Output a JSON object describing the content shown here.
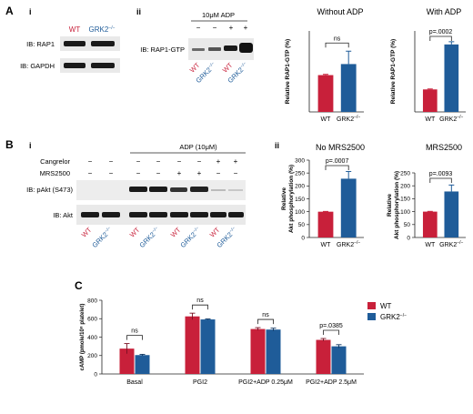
{
  "colors": {
    "wt": "#c8203a",
    "ko": "#1f5c99",
    "band": "#1a1a1a",
    "blot_bg": "#e9e9e9",
    "axis": "#222222"
  },
  "panels": {
    "A": {
      "letter": "A",
      "i": {
        "label": "i",
        "col_labels": [
          "WT",
          "GRK2−/−"
        ],
        "blots": [
          {
            "label": "IB: RAP1"
          },
          {
            "label": "IB: GAPDH"
          }
        ]
      },
      "ii": {
        "label": "ii",
        "treatment": "10μM ADP",
        "signs": [
          "−",
          "−",
          "+",
          "+"
        ],
        "blot_label": "IB: RAP1-GTP",
        "lane_labels": [
          "WT",
          "GRK2−/−",
          "WT",
          "GRK2−/−"
        ]
      }
    },
    "B": {
      "letter": "B",
      "i": {
        "label": "i",
        "treatments": [
          {
            "name": "Cangrelor",
            "signs": [
              "−",
              "−",
              "−",
              "−",
              "−",
              "−",
              "+",
              "+"
            ]
          },
          {
            "name": "MRS2500",
            "signs": [
              "−",
              "−",
              "−",
              "−",
              "+",
              "+",
              "−",
              "−"
            ]
          }
        ],
        "adp_label": "ADP (10μM)",
        "blots": [
          {
            "label": "IB: pAkt (S473)"
          },
          {
            "label": "IB: Akt"
          }
        ],
        "lane_labels": [
          "WT",
          "GRK2−/−",
          "WT",
          "GRK2−/−",
          "WT",
          "GRK2−/−",
          "WT",
          "GRK2−/−"
        ]
      },
      "ii": {
        "label": "ii"
      }
    },
    "C": {
      "letter": "C"
    }
  },
  "chart_data": [
    {
      "type": "bar",
      "panel": "A-ii-1",
      "title": "Without ADP",
      "ylabel": "Relative RAP1-GTP (%)",
      "categories": [
        "WT",
        "GRK2−/−"
      ],
      "values": [
        1.0,
        1.3
      ],
      "errors": [
        0.02,
        0.35
      ],
      "ylim": [
        0,
        2.2
      ],
      "annotation": "ns"
    },
    {
      "type": "bar",
      "panel": "A-ii-2",
      "title": "With ADP",
      "ylabel": "Relative RAP1-GTP (%)",
      "categories": [
        "WT",
        "GRK2−/−"
      ],
      "values": [
        1.0,
        3.0
      ],
      "errors": [
        0.02,
        0.12
      ],
      "ylim": [
        0,
        3.6
      ],
      "annotation": "p=.0002"
    },
    {
      "type": "bar",
      "panel": "B-ii-1",
      "title": "No MRS2500",
      "ylabel": "Relative Akt phosphorylation (%)",
      "categories": [
        "WT",
        "GRK2−/−"
      ],
      "values": [
        100,
        228
      ],
      "errors": [
        1,
        28
      ],
      "ylim": [
        0,
        300
      ],
      "yticks": [
        0,
        50,
        100,
        150,
        200,
        250,
        300
      ],
      "annotation": "p=.0007"
    },
    {
      "type": "bar",
      "panel": "B-ii-2",
      "title": "MRS2500",
      "ylabel": "Relative Akt phosphorylation (%)",
      "categories": [
        "WT",
        "GRK2−/−"
      ],
      "values": [
        100,
        178
      ],
      "errors": [
        1,
        25
      ],
      "ylim": [
        0,
        250
      ],
      "yticks": [
        0,
        50,
        100,
        150,
        200,
        250
      ],
      "annotation": "p=.0093"
    },
    {
      "type": "bar",
      "panel": "C",
      "ylabel": "cAMP (pmole/10⁸ platelet)",
      "categories": [
        "Basal",
        "PGI2",
        "PGI2+ADP 0.25μM",
        "PGI2+ADP 2.5μM"
      ],
      "series": [
        {
          "name": "WT",
          "values": [
            275,
            625,
            488,
            370
          ],
          "errors": [
            55,
            35,
            15,
            15
          ]
        },
        {
          "name": "GRK2−/−",
          "values": [
            205,
            592,
            482,
            300
          ],
          "errors": [
            8,
            5,
            15,
            18
          ]
        }
      ],
      "ylim": [
        0,
        800
      ],
      "yticks": [
        0,
        200,
        400,
        600,
        800
      ],
      "annotations": [
        "ns",
        "ns",
        "ns",
        "p=.0385"
      ],
      "legend": "top-right"
    }
  ]
}
